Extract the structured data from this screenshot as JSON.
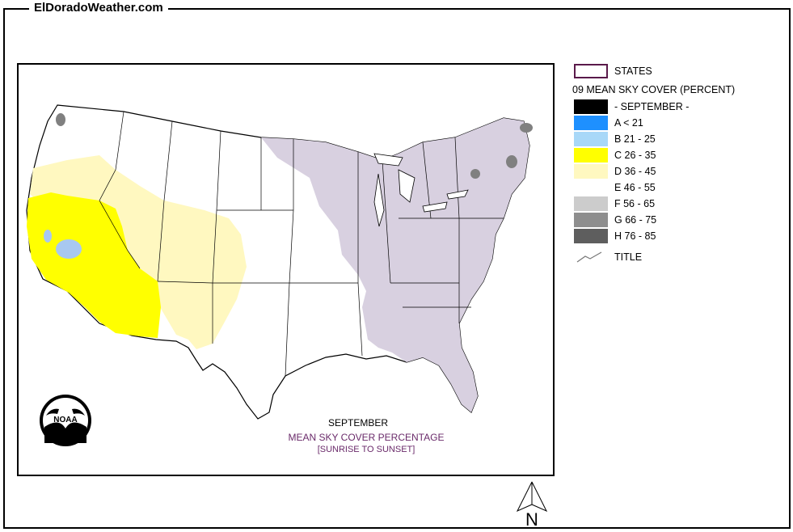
{
  "site": {
    "title": "ElDoradoWeather.com"
  },
  "legend": {
    "states_label": "STATES",
    "heading": "09 MEAN SKY COVER (PERCENT)",
    "items": [
      {
        "label": "- SEPTEMBER -",
        "color": "#000000"
      },
      {
        "label": "A < 21",
        "color": "#1E90FF"
      },
      {
        "label": "B 21 - 25",
        "color": "#A8D8F8"
      },
      {
        "label": "C 26 - 35",
        "color": "#FFFF00"
      },
      {
        "label": "D 36 - 45",
        "color": "#FFF8C0"
      },
      {
        "label": "E 46 - 55",
        "color": "#FFFFFF"
      },
      {
        "label": "F 56 - 65",
        "color": "#CCCCCC"
      },
      {
        "label": "G 66 - 75",
        "color": "#8E8E8E"
      },
      {
        "label": "H 76 - 85",
        "color": "#5E5E5E"
      }
    ],
    "title_label": "TITLE",
    "states_outline_color": "#5A1A4A"
  },
  "map": {
    "caption_month": "SEPTEMBER",
    "caption_title": "MEAN SKY COVER PERCENTAGE",
    "caption_sub": "[SUNRISE TO SUNSET]",
    "caption_color": "#6A2A6A",
    "noaa_text": "NOAA",
    "zone_colors": {
      "yellow": "#FFFF00",
      "light_yellow": "#FFF8C0",
      "lavender": "#D8D0E0",
      "dark_gray": "#808080",
      "light_blue": "#A8C8F0"
    }
  },
  "north_arrow": {
    "label": "N"
  }
}
